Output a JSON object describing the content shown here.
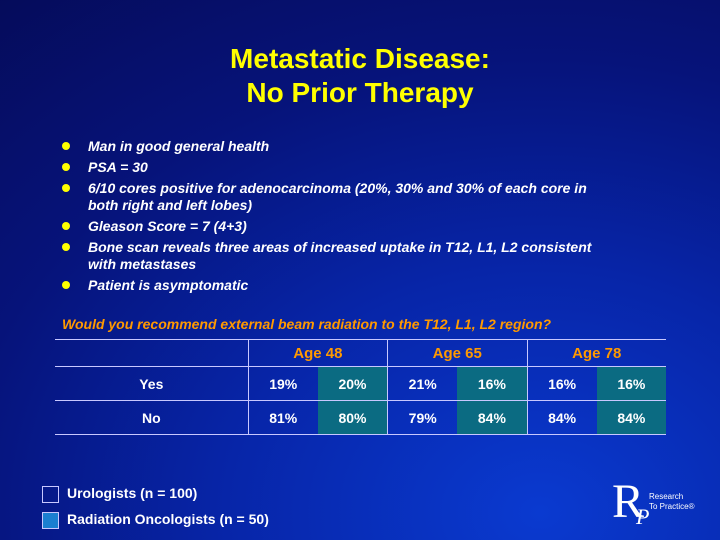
{
  "title": {
    "line1": "Metastatic Disease:",
    "line2": "No Prior Therapy"
  },
  "bullets": [
    "Man in good general health",
    "PSA = 30",
    "6/10 cores positive for adenocarcinoma (20%, 30% and 30% of each core in both right and left lobes)",
    "Gleason Score = 7 (4+3)",
    "Bone scan reveals three areas of increased uptake in T12, L1, L2 consistent with metastases",
    "Patient is asymptomatic"
  ],
  "question": "Would you recommend external beam radiation to the T12, L1, L2 region?",
  "table": {
    "groups": [
      "Age 48",
      "Age 65",
      "Age 78"
    ],
    "rows": [
      {
        "label": "Yes",
        "values": [
          "19%",
          "20%",
          "21%",
          "16%",
          "16%",
          "16%"
        ]
      },
      {
        "label": "No",
        "values": [
          "81%",
          "80%",
          "79%",
          "84%",
          "84%",
          "84%"
        ]
      }
    ]
  },
  "legend": {
    "urologists": "Urologists  (n = 100)",
    "radiation": "Radiation Oncologists  (n = 50)"
  },
  "logo": {
    "line1": "Research",
    "line2": "To Practice",
    "tm": "®"
  },
  "colors": {
    "title": "#ffff00",
    "accent": "#ff9900",
    "rad_cell": "#0b6b82"
  }
}
